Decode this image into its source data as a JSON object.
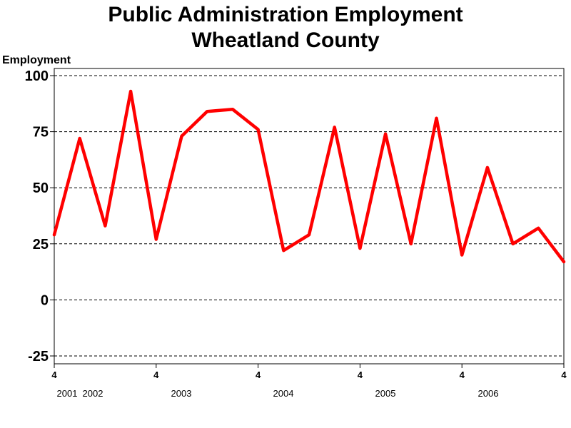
{
  "chart_data": {
    "type": "line",
    "title": "Public Administration Employment",
    "subtitle": "Wheatland County",
    "ylabel": "Employment",
    "ylim": [
      -25,
      100
    ],
    "yticks": [
      -25,
      0,
      25,
      50,
      75,
      100
    ],
    "grid": "horizontal-dashed",
    "x_tick_marks": [
      "4",
      "4",
      "4",
      "4",
      "4",
      "4"
    ],
    "x_year_labels": [
      "2001",
      "2002",
      "2003",
      "2004",
      "2005",
      "2006"
    ],
    "series": [
      {
        "color": "#ff0000",
        "x": [
          "2001 Q4",
          "2002 Q1",
          "2002 Q2",
          "2002 Q3",
          "2002 Q4",
          "2003 Q1",
          "2003 Q2",
          "2003 Q3",
          "2003 Q4",
          "2004 Q1",
          "2004 Q2",
          "2004 Q3",
          "2004 Q4",
          "2005 Q1",
          "2005 Q2",
          "2005 Q3",
          "2005 Q4",
          "2006 Q1",
          "2006 Q2",
          "2006 Q3",
          "2006 Q4"
        ],
        "values": [
          29,
          72,
          33,
          93,
          27,
          73,
          84,
          85,
          76,
          22,
          29,
          77,
          23,
          74,
          25,
          81,
          20,
          59,
          25,
          32,
          17
        ]
      }
    ]
  }
}
